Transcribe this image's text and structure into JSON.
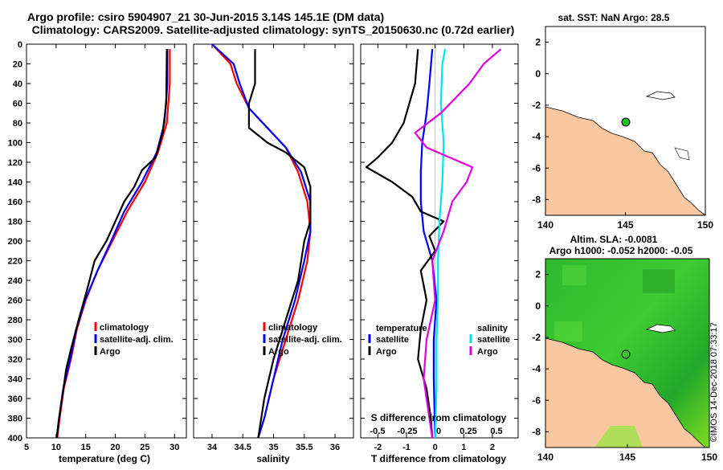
{
  "header": {
    "line1": "Argo profile: csiro 5904907_21 30-Jun-2015 3.14S 145.1E (DM data)",
    "line2": "Climatology: CARS2009. Satellite-adjusted climatology: synTS_20150630.nc (0.72d earlier)"
  },
  "footer": {
    "stamp": "©IMOS 14-Dec-2018 07:33:17"
  },
  "colors": {
    "climatology": "#ff0000",
    "satellite": "#0000ff",
    "argo": "#000000",
    "sal_satellite": "#00e5ee",
    "sal_argo": "#e000e0",
    "land": "#fac8a0",
    "sla_fill": "#2fb82f",
    "marker": "#22c122"
  },
  "chart_data": [
    {
      "type": "line",
      "xlabel": "temperature (deg C)",
      "xlim": [
        5,
        32
      ],
      "xticks": [
        5,
        10,
        15,
        20,
        25,
        30
      ],
      "ylim": [
        0,
        400
      ],
      "yticks": [
        0,
        20,
        40,
        60,
        80,
        100,
        120,
        140,
        160,
        180,
        200,
        220,
        240,
        260,
        280,
        300,
        320,
        340,
        360,
        380,
        400
      ],
      "legend": [
        "climatology",
        "satellite-adj. clim.",
        "Argo"
      ],
      "series": [
        {
          "name": "climatology",
          "points": [
            [
              29.2,
              5
            ],
            [
              29.2,
              40
            ],
            [
              28.7,
              80
            ],
            [
              27.2,
              110
            ],
            [
              25.0,
              140
            ],
            [
              22.0,
              170
            ],
            [
              19.5,
              200
            ],
            [
              17.0,
              230
            ],
            [
              15.0,
              260
            ],
            [
              13.5,
              290
            ],
            [
              12.5,
              320
            ],
            [
              11.3,
              350
            ],
            [
              10.6,
              380
            ],
            [
              10.2,
              400
            ]
          ]
        },
        {
          "name": "satellite-adj. clim.",
          "points": [
            [
              28.8,
              5
            ],
            [
              28.8,
              40
            ],
            [
              28.3,
              80
            ],
            [
              27.0,
              110
            ],
            [
              24.5,
              140
            ],
            [
              21.5,
              170
            ],
            [
              19.3,
              200
            ],
            [
              17.0,
              230
            ],
            [
              14.9,
              260
            ],
            [
              13.4,
              290
            ],
            [
              12.4,
              320
            ],
            [
              11.2,
              350
            ],
            [
              10.5,
              380
            ],
            [
              10.1,
              400
            ]
          ]
        },
        {
          "name": "Argo",
          "points": [
            [
              28.7,
              5
            ],
            [
              28.6,
              60
            ],
            [
              28.0,
              90
            ],
            [
              26.8,
              115
            ],
            [
              24.5,
              128
            ],
            [
              23.2,
              145
            ],
            [
              21.5,
              160
            ],
            [
              20.0,
              180
            ],
            [
              18.5,
              200
            ],
            [
              16.5,
              220
            ],
            [
              15.2,
              250
            ],
            [
              13.8,
              280
            ],
            [
              12.5,
              310
            ],
            [
              11.7,
              330
            ],
            [
              11.0,
              360
            ],
            [
              10.5,
              380
            ],
            [
              10.1,
              400
            ]
          ]
        }
      ]
    },
    {
      "type": "line",
      "xlabel": "salinity",
      "xlim": [
        33.7,
        36.3
      ],
      "xticks": [
        34,
        34.5,
        35,
        35.5,
        36
      ],
      "ylim": [
        0,
        400
      ],
      "legend": [
        "climatology",
        "satellite-adj. clim.",
        "Argo"
      ],
      "series": [
        {
          "name": "climatology",
          "points": [
            [
              34.0,
              0
            ],
            [
              34.3,
              20
            ],
            [
              34.4,
              40
            ],
            [
              34.6,
              65
            ],
            [
              34.9,
              85
            ],
            [
              35.2,
              105
            ],
            [
              35.4,
              130
            ],
            [
              35.55,
              160
            ],
            [
              35.6,
              190
            ],
            [
              35.55,
              220
            ],
            [
              35.4,
              260
            ],
            [
              35.2,
              300
            ],
            [
              35.0,
              340
            ],
            [
              34.85,
              380
            ],
            [
              34.75,
              400
            ]
          ]
        },
        {
          "name": "satellite-adj. clim.",
          "points": [
            [
              34.0,
              0
            ],
            [
              34.35,
              20
            ],
            [
              34.45,
              40
            ],
            [
              34.6,
              65
            ],
            [
              34.9,
              85
            ],
            [
              35.2,
              105
            ],
            [
              35.45,
              130
            ],
            [
              35.6,
              160
            ],
            [
              35.6,
              190
            ],
            [
              35.5,
              220
            ],
            [
              35.35,
              260
            ],
            [
              35.15,
              300
            ],
            [
              35.0,
              340
            ],
            [
              34.85,
              380
            ],
            [
              34.75,
              400
            ]
          ]
        },
        {
          "name": "Argo",
          "points": [
            [
              34.7,
              5
            ],
            [
              34.7,
              40
            ],
            [
              34.6,
              60
            ],
            [
              34.6,
              85
            ],
            [
              34.9,
              100
            ],
            [
              35.2,
              110
            ],
            [
              35.5,
              125
            ],
            [
              35.6,
              145
            ],
            [
              35.6,
              180
            ],
            [
              35.5,
              200
            ],
            [
              35.4,
              240
            ],
            [
              35.2,
              280
            ],
            [
              35.0,
              320
            ],
            [
              34.85,
              360
            ],
            [
              34.75,
              400
            ]
          ]
        }
      ]
    },
    {
      "type": "line",
      "xlabel": "T difference from climatology",
      "x2label": "S difference from climatology",
      "xlim": [
        -2.6,
        2.9
      ],
      "xticks": [
        -2,
        -1,
        0,
        1,
        2
      ],
      "x2ticks": [
        "-0.5",
        "-0.25",
        "0",
        "0.25",
        "0.5"
      ],
      "ylim": [
        0,
        400
      ],
      "legend_temperature": {
        "title": "temperature",
        "items": [
          "satellite",
          "Argo"
        ]
      },
      "legend_salinity": {
        "title": "salinity",
        "items": [
          "satellite",
          "Argo"
        ]
      },
      "series": [
        {
          "name": "T satellite",
          "points": [
            [
              -0.1,
              5
            ],
            [
              -0.2,
              40
            ],
            [
              -0.3,
              70
            ],
            [
              -0.45,
              100
            ],
            [
              -0.5,
              130
            ],
            [
              -0.5,
              160
            ],
            [
              -0.4,
              190
            ],
            [
              -0.1,
              220
            ],
            [
              0.05,
              260
            ],
            [
              -0.05,
              300
            ],
            [
              -0.05,
              340
            ],
            [
              0,
              400
            ]
          ]
        },
        {
          "name": "T Argo",
          "points": [
            [
              -0.6,
              5
            ],
            [
              -0.7,
              40
            ],
            [
              -0.9,
              60
            ],
            [
              -1.1,
              80
            ],
            [
              -1.5,
              100
            ],
            [
              -2.0,
              115
            ],
            [
              -2.4,
              125
            ],
            [
              -1.5,
              140
            ],
            [
              -0.8,
              155
            ],
            [
              -0.5,
              170
            ],
            [
              0.3,
              180
            ],
            [
              -0.2,
              195
            ],
            [
              0,
              210
            ],
            [
              -0.5,
              230
            ],
            [
              -0.3,
              260
            ],
            [
              -0.5,
              290
            ],
            [
              -0.6,
              320
            ],
            [
              -0.3,
              350
            ],
            [
              -0.15,
              380
            ],
            [
              -0.1,
              400
            ]
          ]
        },
        {
          "name": "S satellite",
          "points": [
            [
              0.35,
              5
            ],
            [
              0.25,
              20
            ],
            [
              0.2,
              60
            ],
            [
              0.3,
              100
            ],
            [
              0.25,
              140
            ],
            [
              0.15,
              180
            ],
            [
              0.1,
              220
            ],
            [
              0.1,
              260
            ],
            [
              0.05,
              300
            ],
            [
              0.05,
              350
            ],
            [
              0,
              400
            ]
          ]
        },
        {
          "name": "S Argo",
          "points": [
            [
              2.3,
              5
            ],
            [
              1.7,
              20
            ],
            [
              1.2,
              40
            ],
            [
              0.2,
              70
            ],
            [
              -0.7,
              90
            ],
            [
              -0.3,
              105
            ],
            [
              1.3,
              125
            ],
            [
              1.1,
              140
            ],
            [
              0.6,
              160
            ],
            [
              0.3,
              190
            ],
            [
              -0.1,
              220
            ],
            [
              0.0,
              260
            ],
            [
              -0.3,
              300
            ],
            [
              -0.4,
              340
            ],
            [
              -0.2,
              380
            ],
            [
              -0.1,
              400
            ]
          ]
        }
      ]
    },
    {
      "type": "heatmap",
      "title": "sat. SST: NaN Argo: 28.5",
      "xlim": [
        140,
        150
      ],
      "xticks": [
        140,
        145,
        150
      ],
      "ylim": [
        -9,
        3
      ],
      "yticks": [
        2,
        0,
        -2,
        -4,
        -6,
        -8
      ],
      "marker": [
        145.1,
        -3.14
      ]
    },
    {
      "type": "heatmap",
      "title": "Altim. SLA: -0.0081",
      "subtitle": "Argo h1000: -0.052 h2000: -0.05",
      "xlim": [
        140,
        150
      ],
      "xticks": [
        140,
        145,
        150
      ],
      "ylim": [
        -9,
        3
      ],
      "yticks": [
        2,
        0,
        -2,
        -4,
        -6,
        -8
      ],
      "marker": [
        145.1,
        -3.14
      ]
    }
  ]
}
